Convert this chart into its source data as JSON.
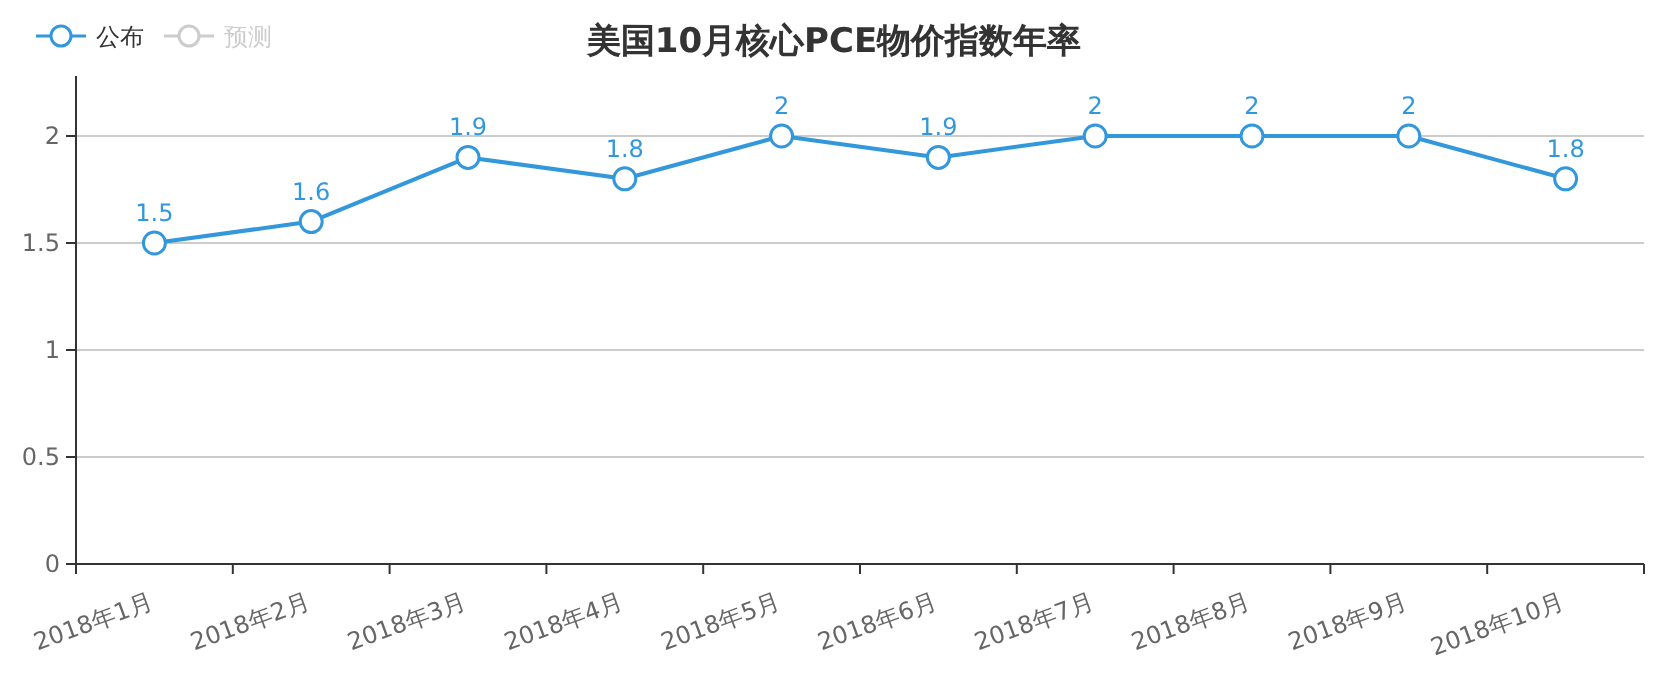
{
  "chart_data": {
    "type": "line",
    "title": "美国10月核心PCE物价指数年率",
    "categories": [
      "2018年1月",
      "2018年2月",
      "2018年3月",
      "2018年4月",
      "2018年5月",
      "2018年6月",
      "2018年7月",
      "2018年8月",
      "2018年9月",
      "2018年10月"
    ],
    "series": [
      {
        "name": "公布",
        "color": "#3398db",
        "values": [
          1.5,
          1.6,
          1.9,
          1.8,
          2,
          1.9,
          2,
          2,
          2,
          1.8
        ]
      },
      {
        "name": "预测",
        "color": "#cccccc",
        "values": [
          null,
          null,
          null,
          null,
          null,
          null,
          null,
          null,
          null,
          null
        ]
      }
    ],
    "ylim": [
      0,
      2
    ],
    "yticks": [
      0,
      0.5,
      1,
      1.5,
      2
    ],
    "grid": "y",
    "legend": "top left",
    "marker": "circle",
    "data_labels": true
  }
}
